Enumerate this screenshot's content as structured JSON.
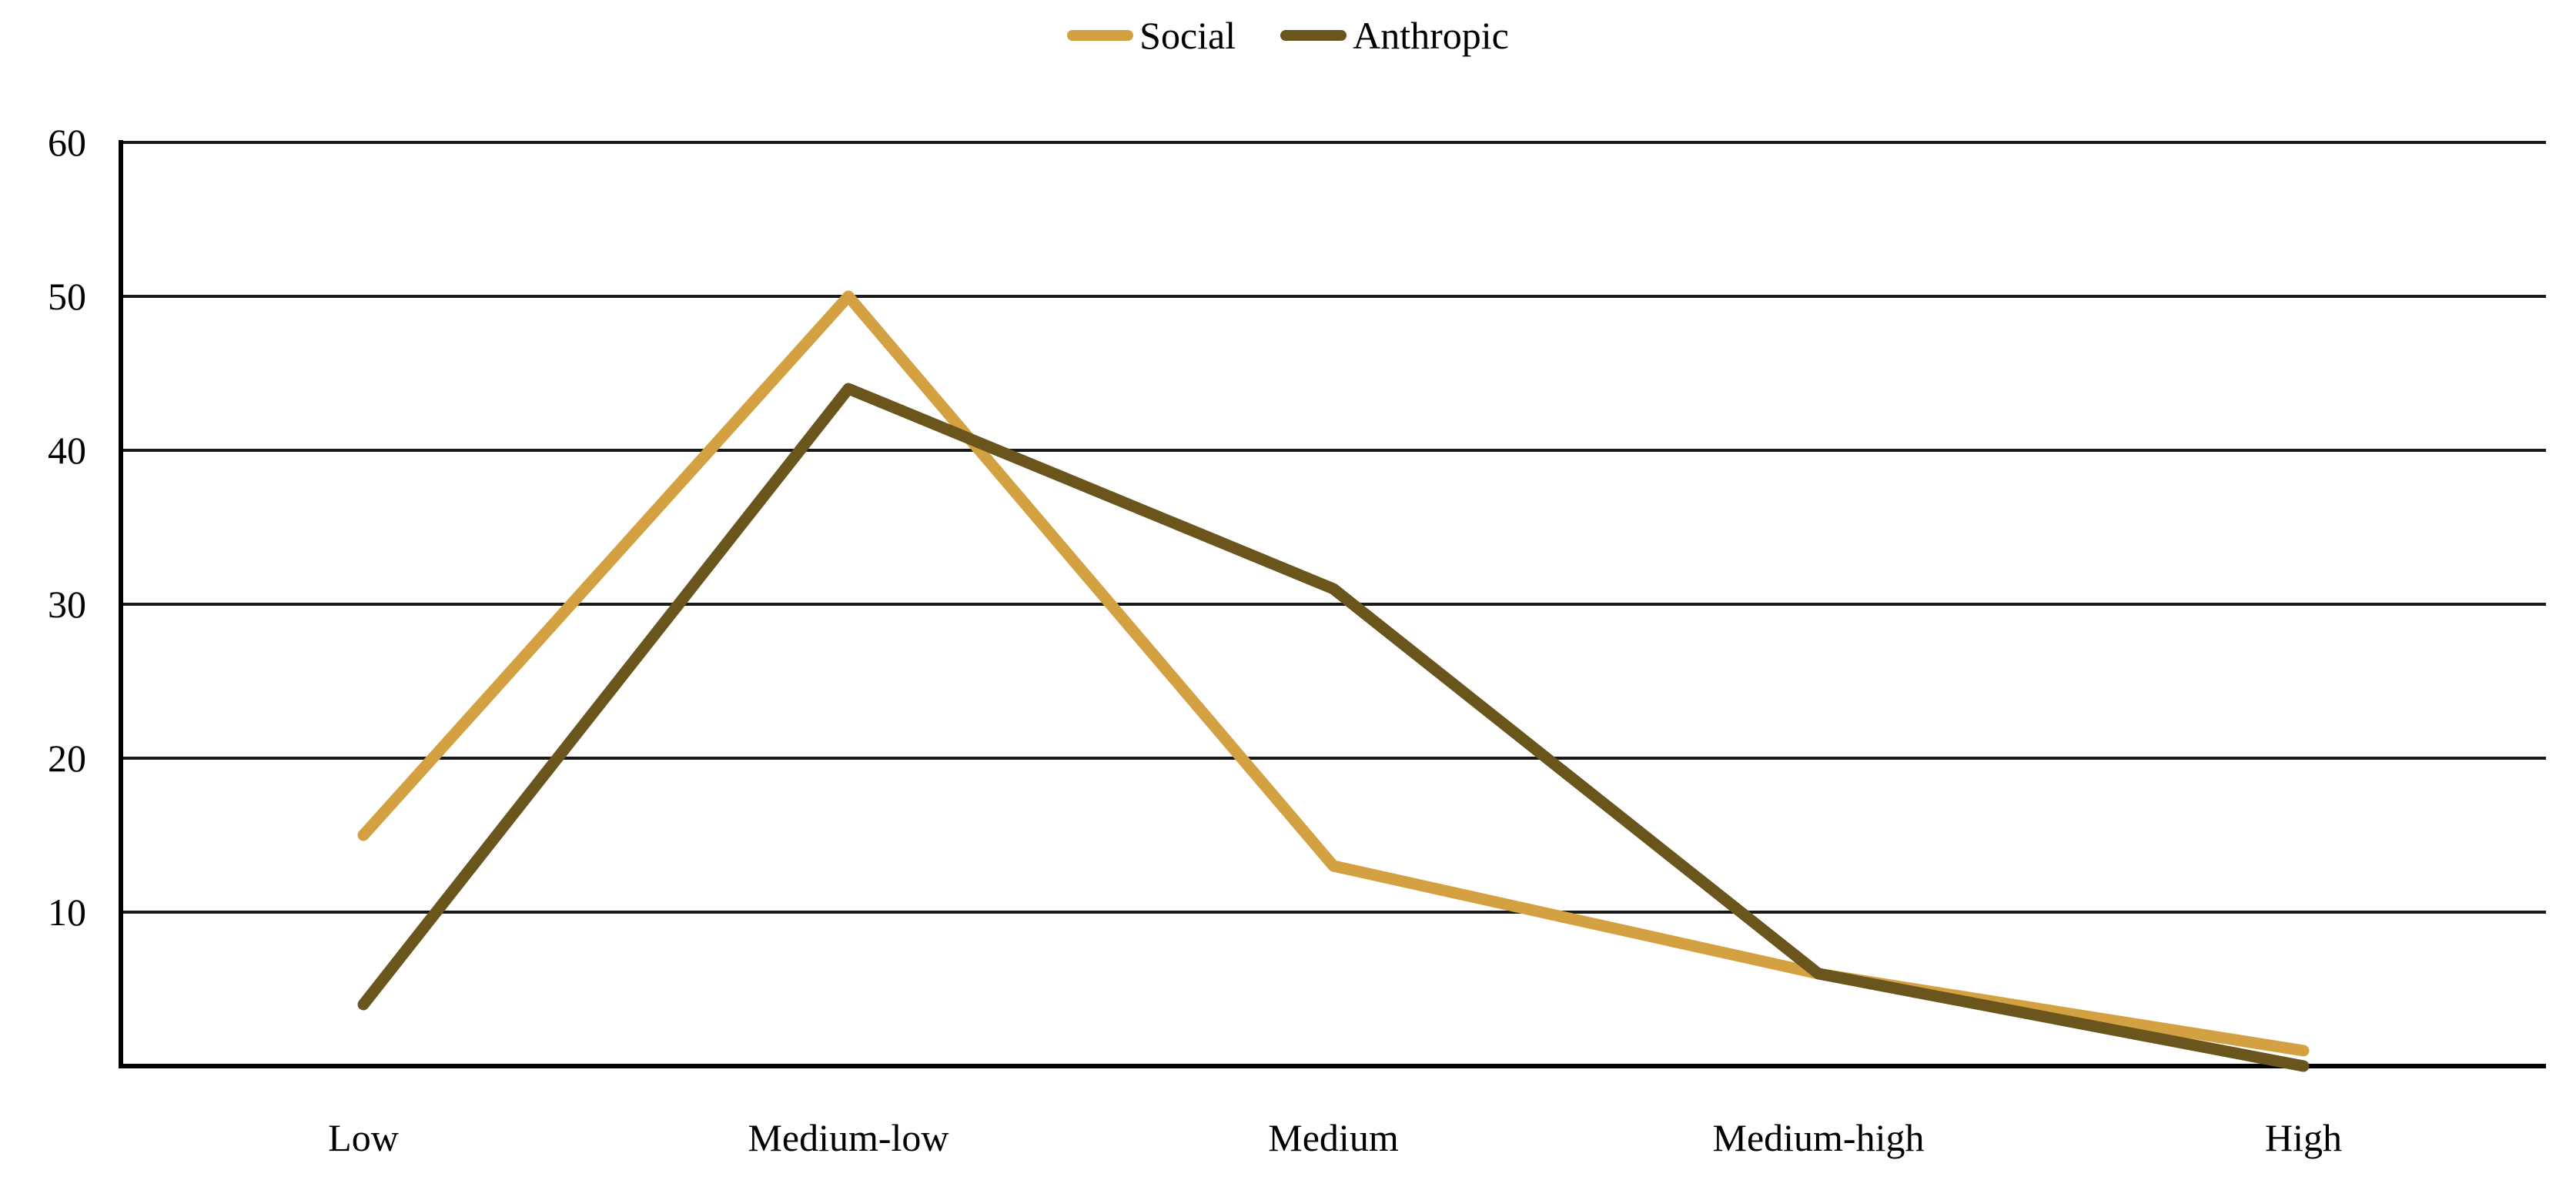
{
  "chart_data": {
    "type": "line",
    "categories": [
      "Low",
      "Medium-low",
      "Medium",
      "Medium-high",
      "High"
    ],
    "series": [
      {
        "name": "Social",
        "color": "#D4A142",
        "values": [
          15,
          50,
          13,
          6,
          1
        ]
      },
      {
        "name": "Anthropic",
        "color": "#6A551D",
        "values": [
          4,
          44,
          31,
          6,
          0
        ]
      }
    ],
    "ylim": [
      0,
      60
    ],
    "yticks": [
      10,
      20,
      30,
      40,
      50,
      60
    ],
    "grid": true,
    "legend_position": "top-center"
  },
  "colors": {
    "background": "#FFFFFF",
    "gridline": "#1A1A1A",
    "axis": "#000000",
    "text": "#000000"
  }
}
